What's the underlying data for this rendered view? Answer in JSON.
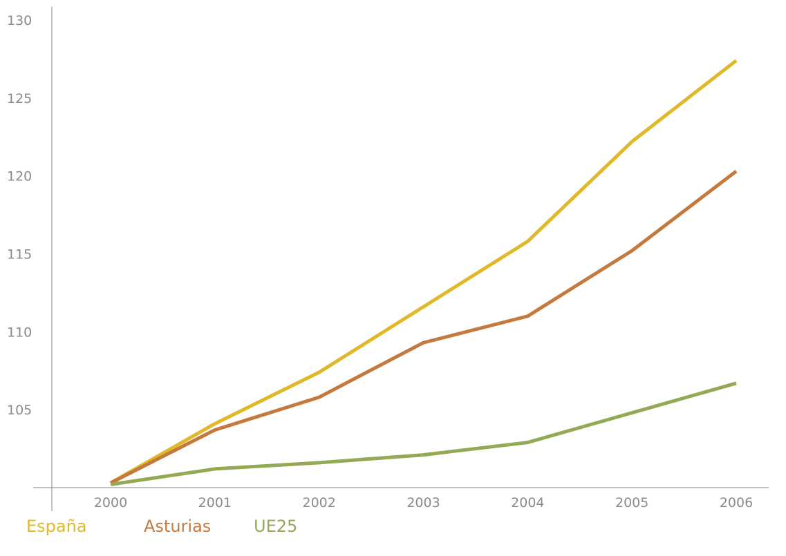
{
  "chart_data": {
    "type": "line",
    "title": "",
    "xlabel": "",
    "ylabel": "",
    "x": [
      "2000",
      "2001",
      "2002",
      "2003",
      "2004",
      "2005",
      "2006"
    ],
    "y_ticks": [
      "105",
      "110",
      "115",
      "120",
      "125",
      "130"
    ],
    "ylim": [
      100,
      130
    ],
    "grid": false,
    "legend_position": "bottom",
    "series": [
      {
        "name": "España",
        "color": "#E0B829",
        "values": [
          100.3,
          104.1,
          107.4,
          111.6,
          115.8,
          122.2,
          127.4
        ]
      },
      {
        "name": "Asturias",
        "color": "#C47A3E",
        "values": [
          100.3,
          103.7,
          105.8,
          109.3,
          111.0,
          115.2,
          120.3
        ]
      },
      {
        "name": "UE25",
        "color": "#94A955",
        "values": [
          100.2,
          101.2,
          101.6,
          102.1,
          102.9,
          104.8,
          106.7
        ]
      }
    ]
  }
}
